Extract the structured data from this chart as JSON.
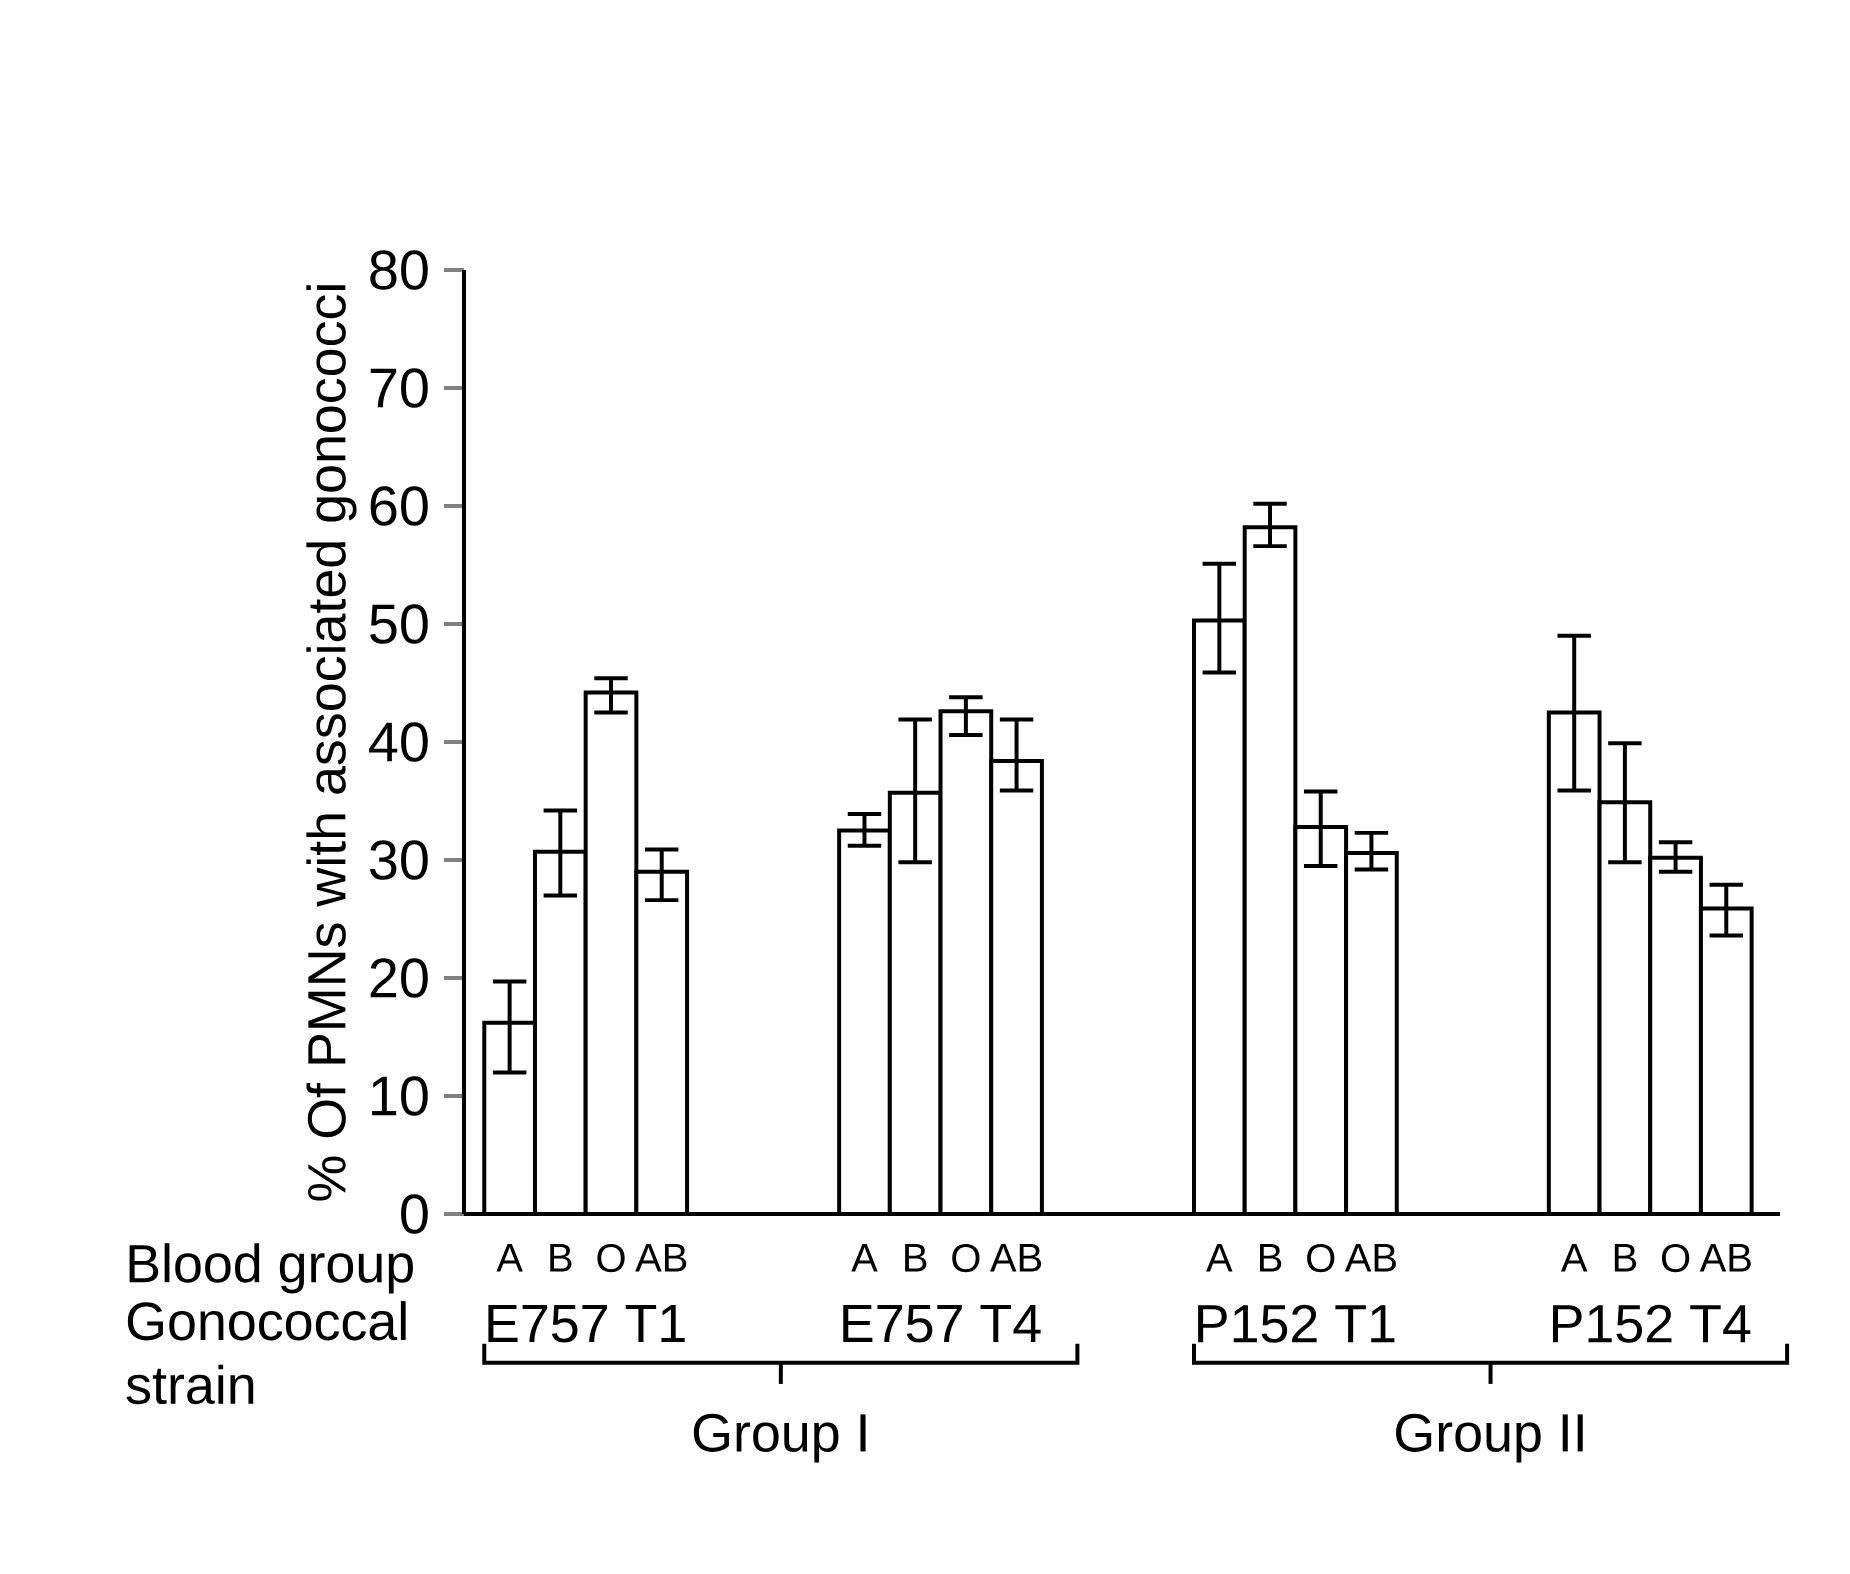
{
  "chart_data": {
    "type": "bar",
    "ylabel": "% Of PMNs with associated gonococci",
    "categories": [
      "A",
      "B",
      "O",
      "AB",
      null,
      null,
      null,
      "A",
      "B",
      "O",
      "AB",
      null,
      null,
      null,
      "A",
      "B",
      "O",
      "AB",
      null,
      null,
      null,
      "A",
      "B",
      "O",
      "AB"
    ],
    "values": [
      16.2,
      30.7,
      44.2,
      29.0,
      null,
      null,
      null,
      32.5,
      35.7,
      42.6,
      38.4,
      null,
      null,
      null,
      50.3,
      58.2,
      32.8,
      30.6,
      null,
      null,
      null,
      42.5,
      34.9,
      30.2,
      25.9
    ],
    "errors": [
      [
        12.0,
        19.7
      ],
      [
        27.0,
        34.2
      ],
      [
        42.5,
        45.4
      ],
      [
        26.6,
        30.9
      ],
      null,
      null,
      null,
      [
        31.2,
        33.9
      ],
      [
        29.8,
        41.9
      ],
      [
        40.6,
        43.8
      ],
      [
        35.9,
        41.9
      ],
      null,
      null,
      null,
      [
        45.9,
        55.1
      ],
      [
        56.6,
        60.2
      ],
      [
        29.5,
        35.8
      ],
      [
        29.2,
        32.3
      ],
      null,
      null,
      null,
      [
        35.9,
        49.0
      ],
      [
        29.8,
        39.9
      ],
      [
        29.0,
        31.5
      ],
      [
        23.6,
        27.9
      ]
    ],
    "color": "#ffffff",
    "ylim": [
      0,
      80
    ],
    "yticks": [
      0,
      10,
      20,
      30,
      40,
      50,
      60,
      70,
      80
    ],
    "annotations": [
      "Blood group",
      "Gonococcal strain",
      "E757 T1",
      "E757 T4",
      "P152 T1",
      "P152 T4",
      "Group I",
      "Group II"
    ]
  }
}
